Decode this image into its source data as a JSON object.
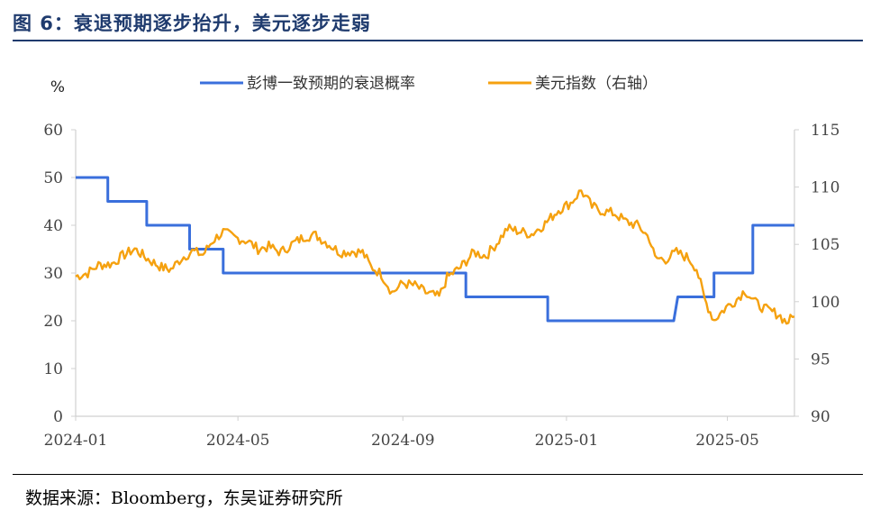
{
  "figure": {
    "title": "图 6：衰退预期逐步抬升，美元逐步走弱",
    "source": "数据来源：Bloomberg，东吴证券研究所"
  },
  "colors": {
    "accent": "#1f3b6e",
    "recession": "#3a6fdc",
    "dxy": "#f5a10f",
    "axis": "#d0d0d0"
  },
  "chart_data": {
    "type": "line",
    "title": "",
    "left_unit": "%",
    "left_axis": {
      "min": 0,
      "max": 60,
      "ticks": [
        0,
        10,
        20,
        30,
        40,
        50,
        60
      ]
    },
    "right_axis": {
      "min": 90,
      "max": 115,
      "ticks": [
        90,
        95,
        100,
        105,
        110,
        115
      ]
    },
    "x_ticks": [
      "2024-01",
      "2024-05",
      "2024-09",
      "2025-01",
      "2025-05"
    ],
    "legend_placement": "top",
    "series": [
      {
        "name": "彭博一致预期的衰退概率",
        "axis": "left",
        "points": [
          [
            "2024-01-01",
            50
          ],
          [
            "2024-01-25",
            50
          ],
          [
            "2024-01-25",
            45
          ],
          [
            "2024-02-23",
            45
          ],
          [
            "2024-02-23",
            40
          ],
          [
            "2024-03-26",
            40
          ],
          [
            "2024-03-26",
            35
          ],
          [
            "2024-04-20",
            35
          ],
          [
            "2024-04-20",
            30
          ],
          [
            "2024-10-18",
            30
          ],
          [
            "2024-10-18",
            25
          ],
          [
            "2024-12-18",
            25
          ],
          [
            "2024-12-18",
            20
          ],
          [
            "2025-03-22",
            20
          ],
          [
            "2025-03-25",
            25
          ],
          [
            "2025-04-21",
            25
          ],
          [
            "2025-04-21",
            30
          ],
          [
            "2025-05-20",
            30
          ],
          [
            "2025-05-20",
            40
          ],
          [
            "2025-06-20",
            40
          ]
        ]
      },
      {
        "name": "美元指数（右轴）",
        "axis": "right",
        "points": [
          [
            "2024-01-01",
            102.2
          ],
          [
            "2024-01-10",
            102.5
          ],
          [
            "2024-01-18",
            103.2
          ],
          [
            "2024-01-28",
            103.3
          ],
          [
            "2024-02-05",
            104.0
          ],
          [
            "2024-02-14",
            104.6
          ],
          [
            "2024-02-24",
            103.7
          ],
          [
            "2024-03-05",
            103.0
          ],
          [
            "2024-03-12",
            102.8
          ],
          [
            "2024-03-20",
            103.8
          ],
          [
            "2024-03-28",
            104.4
          ],
          [
            "2024-04-05",
            104.1
          ],
          [
            "2024-04-12",
            105.3
          ],
          [
            "2024-04-20",
            106.1
          ],
          [
            "2024-04-28",
            105.6
          ],
          [
            "2024-05-08",
            105.3
          ],
          [
            "2024-05-16",
            104.6
          ],
          [
            "2024-05-24",
            104.8
          ],
          [
            "2024-06-02",
            104.3
          ],
          [
            "2024-06-10",
            105.0
          ],
          [
            "2024-06-20",
            105.7
          ],
          [
            "2024-06-28",
            105.8
          ],
          [
            "2024-07-08",
            105.0
          ],
          [
            "2024-07-16",
            104.3
          ],
          [
            "2024-07-25",
            104.4
          ],
          [
            "2024-08-02",
            104.3
          ],
          [
            "2024-08-08",
            103.1
          ],
          [
            "2024-08-16",
            102.4
          ],
          [
            "2024-08-24",
            100.8
          ],
          [
            "2024-09-01",
            101.6
          ],
          [
            "2024-09-10",
            101.4
          ],
          [
            "2024-09-18",
            100.8
          ],
          [
            "2024-09-28",
            100.4
          ],
          [
            "2024-10-04",
            102.1
          ],
          [
            "2024-10-14",
            103.0
          ],
          [
            "2024-10-24",
            104.3
          ],
          [
            "2024-11-02",
            104.0
          ],
          [
            "2024-11-10",
            105.1
          ],
          [
            "2024-11-18",
            106.4
          ],
          [
            "2024-11-28",
            106.1
          ],
          [
            "2024-12-06",
            105.9
          ],
          [
            "2024-12-16",
            106.8
          ],
          [
            "2024-12-26",
            108.0
          ],
          [
            "2025-01-04",
            108.6
          ],
          [
            "2025-01-12",
            109.7
          ],
          [
            "2025-01-20",
            108.3
          ],
          [
            "2025-01-28",
            107.9
          ],
          [
            "2025-02-06",
            107.7
          ],
          [
            "2025-02-14",
            107.0
          ],
          [
            "2025-02-24",
            106.6
          ],
          [
            "2025-03-04",
            105.5
          ],
          [
            "2025-03-08",
            103.8
          ],
          [
            "2025-03-16",
            103.7
          ],
          [
            "2025-03-24",
            104.3
          ],
          [
            "2025-04-02",
            103.8
          ],
          [
            "2025-04-08",
            102.9
          ],
          [
            "2025-04-14",
            100.2
          ],
          [
            "2025-04-21",
            98.4
          ],
          [
            "2025-04-30",
            99.5
          ],
          [
            "2025-05-08",
            100.2
          ],
          [
            "2025-05-14",
            101.0
          ],
          [
            "2025-05-22",
            99.9
          ],
          [
            "2025-05-30",
            99.3
          ],
          [
            "2025-06-08",
            98.9
          ],
          [
            "2025-06-14",
            98.2
          ],
          [
            "2025-06-20",
            98.7
          ]
        ]
      }
    ]
  }
}
